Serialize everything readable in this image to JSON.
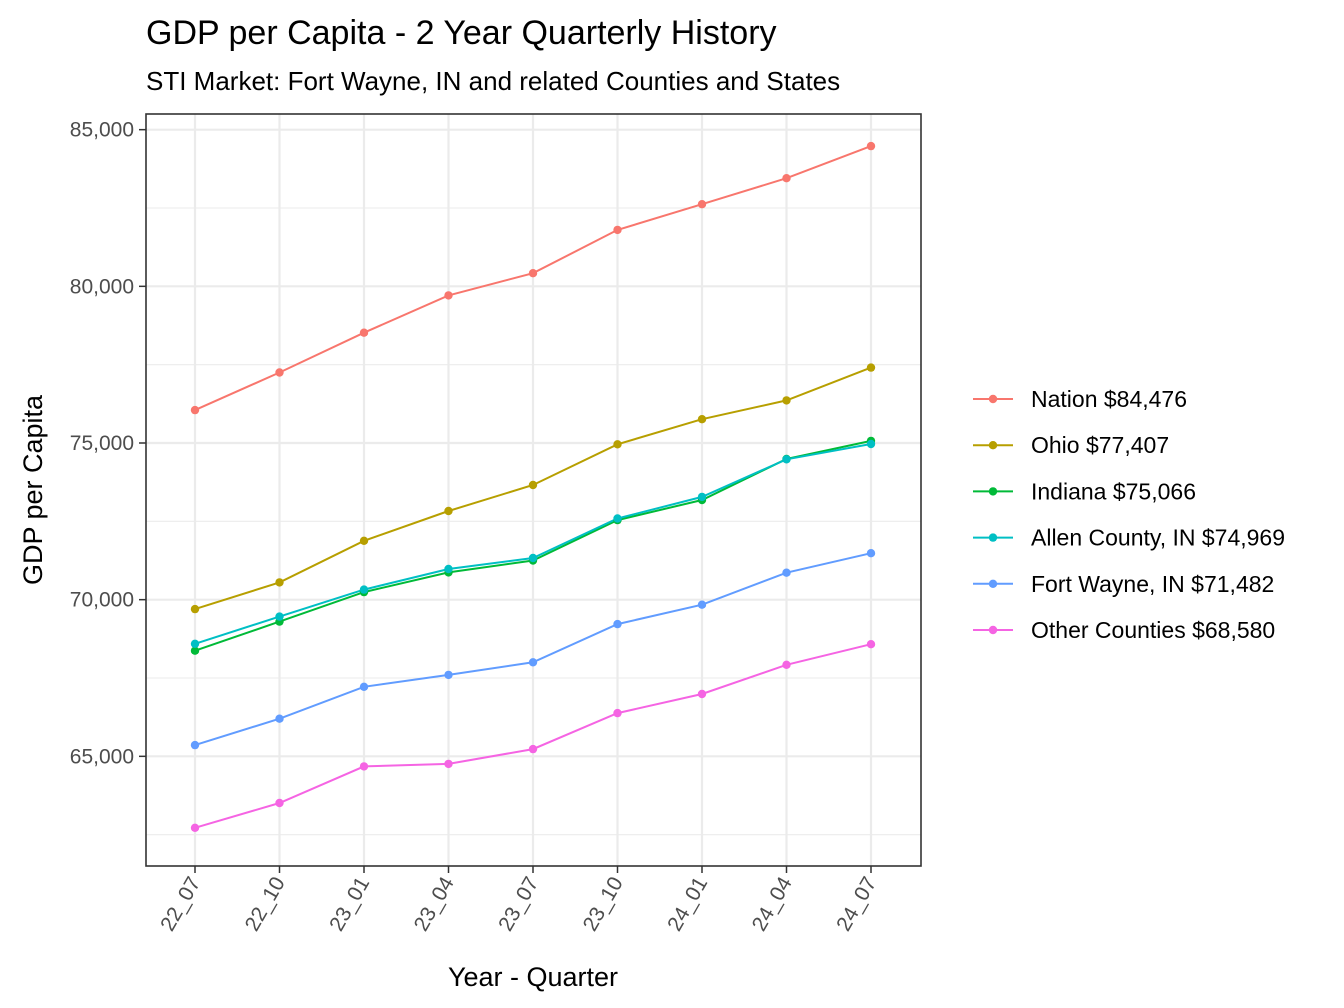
{
  "chart_data": {
    "type": "line",
    "title": "GDP per Capita - 2 Year Quarterly History",
    "subtitle": "STI Market: Fort Wayne, IN and related Counties and States",
    "xlabel": "Year - Quarter",
    "ylabel": "GDP per Capita",
    "categories": [
      "22_07",
      "22_10",
      "23_01",
      "23_04",
      "23_07",
      "23_10",
      "24_01",
      "24_04",
      "24_07"
    ],
    "ylim": [
      61500,
      85500
    ],
    "yticks": [
      65000,
      70000,
      75000,
      80000,
      85000
    ],
    "ytick_labels": [
      "65,000",
      "70,000",
      "75,000",
      "80,000",
      "85,000"
    ],
    "yminor": [
      62500,
      67500,
      72500,
      77500,
      82500
    ],
    "grid": true,
    "legend_position": "right",
    "series": [
      {
        "name": "Nation $84,476",
        "color": "#F8766D",
        "values": [
          76050,
          77250,
          78520,
          79710,
          80420,
          81800,
          82620,
          83450,
          84476
        ]
      },
      {
        "name": "Ohio $77,407",
        "color": "#B79F00",
        "values": [
          69700,
          70550,
          71880,
          72830,
          73660,
          74960,
          75760,
          76360,
          77407
        ]
      },
      {
        "name": "Indiana $75,066",
        "color": "#00BA38",
        "values": [
          68370,
          69300,
          70240,
          70870,
          71250,
          72540,
          73180,
          74490,
          75066
        ]
      },
      {
        "name": "Allen County, IN $74,969",
        "color": "#00BFC4",
        "values": [
          68590,
          69460,
          70320,
          70980,
          71330,
          72590,
          73280,
          74480,
          74969
        ]
      },
      {
        "name": "Fort Wayne, IN $71,482",
        "color": "#619CFF",
        "values": [
          65360,
          66200,
          67220,
          67600,
          68000,
          69220,
          69840,
          70860,
          71482
        ]
      },
      {
        "name": "Other Counties $68,580",
        "color": "#F564E3",
        "values": [
          62720,
          63510,
          64680,
          64760,
          65230,
          66380,
          66990,
          67920,
          68580
        ]
      }
    ]
  }
}
